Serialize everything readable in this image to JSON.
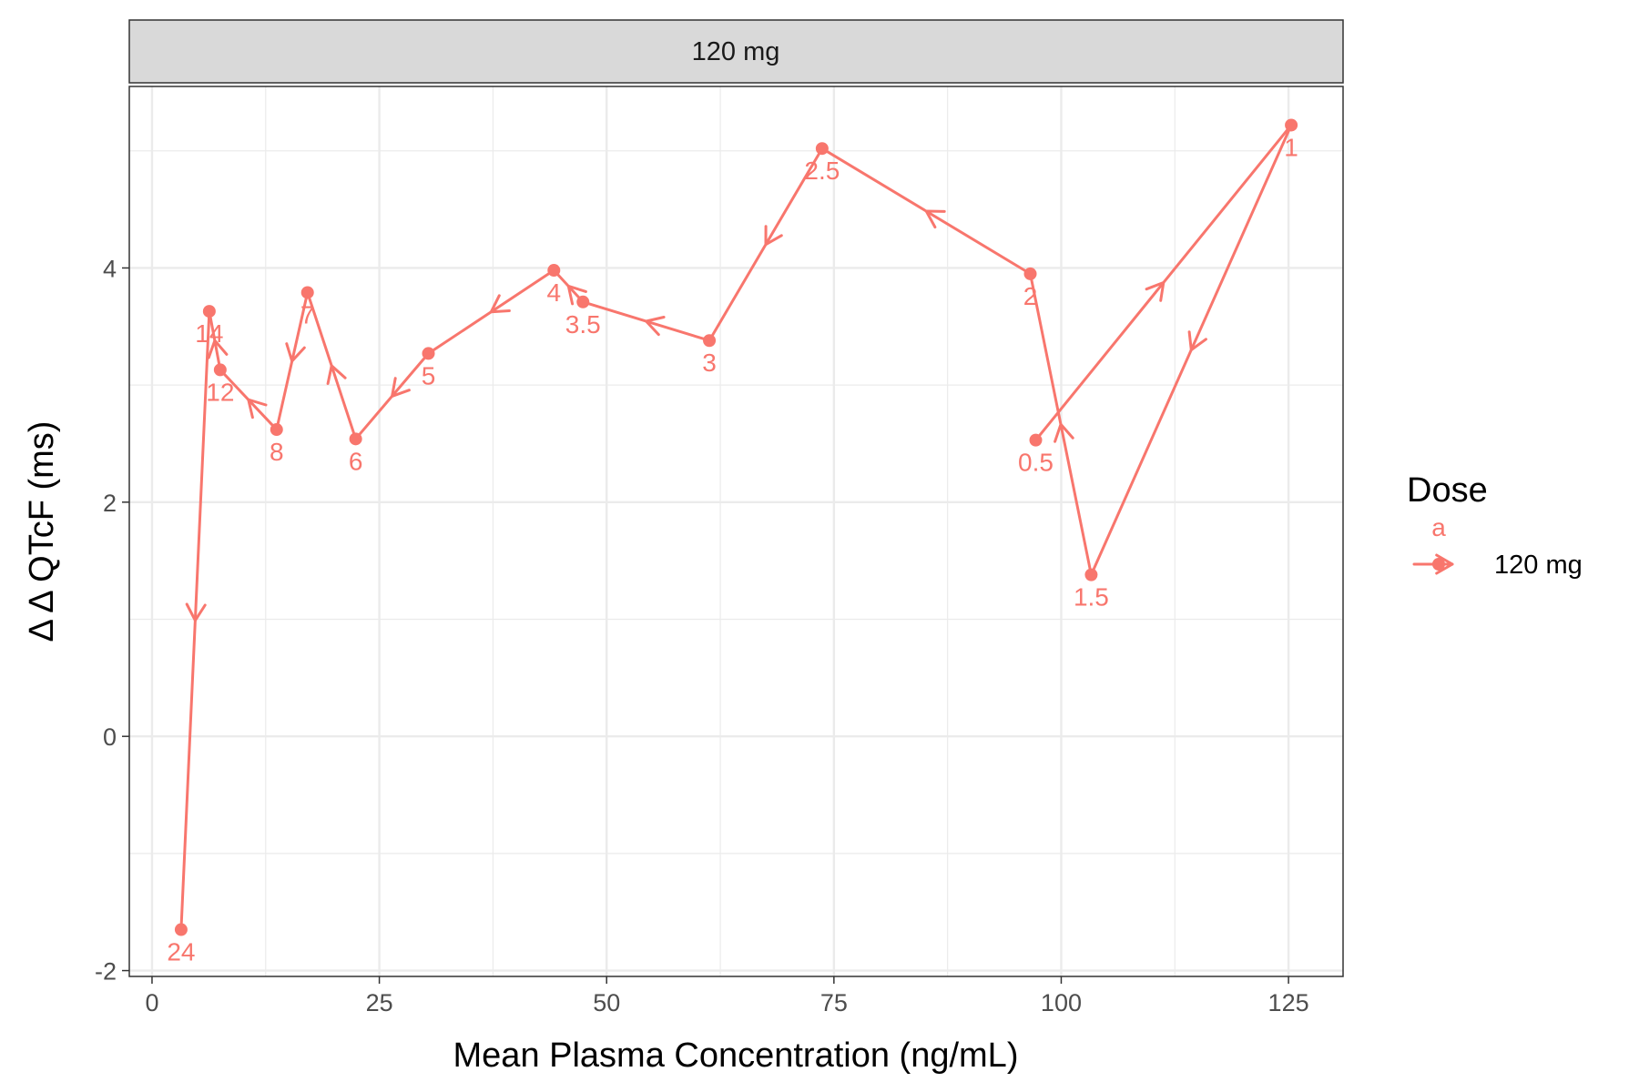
{
  "chart_data": {
    "type": "line",
    "facet_label": "120 mg",
    "xlabel": "Mean Plasma Concentration (ng/mL)",
    "ylabel": "Δ Δ QTcF (ms)",
    "xlim": [
      -2.5,
      131
    ],
    "ylim": [
      -2.05,
      5.55
    ],
    "x_ticks": [
      0,
      25,
      50,
      75,
      100,
      125
    ],
    "x_tick_labels": [
      "0",
      "25",
      "50",
      "75",
      "100",
      "125"
    ],
    "y_ticks": [
      -2,
      0,
      2,
      4
    ],
    "y_tick_labels": [
      "-2",
      "0",
      "2",
      "4"
    ],
    "grid": true,
    "legend": {
      "title": "Dose",
      "position": "right",
      "key_glyph_text": "a",
      "entries": [
        {
          "label": "120 mg",
          "color": "#F8766D"
        }
      ]
    },
    "series": [
      {
        "name": "120 mg",
        "color": "#F8766D",
        "points": [
          {
            "x": 97.2,
            "y": 2.53,
            "label": "0.5"
          },
          {
            "x": 125.3,
            "y": 5.22,
            "label": "1"
          },
          {
            "x": 103.3,
            "y": 1.38,
            "label": "1.5"
          },
          {
            "x": 96.6,
            "y": 3.95,
            "label": "2"
          },
          {
            "x": 73.7,
            "y": 5.02,
            "label": "2.5"
          },
          {
            "x": 61.3,
            "y": 3.38,
            "label": "3"
          },
          {
            "x": 47.4,
            "y": 3.71,
            "label": "3.5"
          },
          {
            "x": 44.2,
            "y": 3.98,
            "label": "4"
          },
          {
            "x": 30.4,
            "y": 3.27,
            "label": "5"
          },
          {
            "x": 22.4,
            "y": 2.54,
            "label": "6"
          },
          {
            "x": 17.1,
            "y": 3.79,
            "label": "7"
          },
          {
            "x": 13.7,
            "y": 2.62,
            "label": "8"
          },
          {
            "x": 7.5,
            "y": 3.13,
            "label": "12"
          },
          {
            "x": 6.3,
            "y": 3.63,
            "label": "14"
          },
          {
            "x": 3.2,
            "y": -1.65,
            "label": "24"
          }
        ]
      }
    ]
  }
}
